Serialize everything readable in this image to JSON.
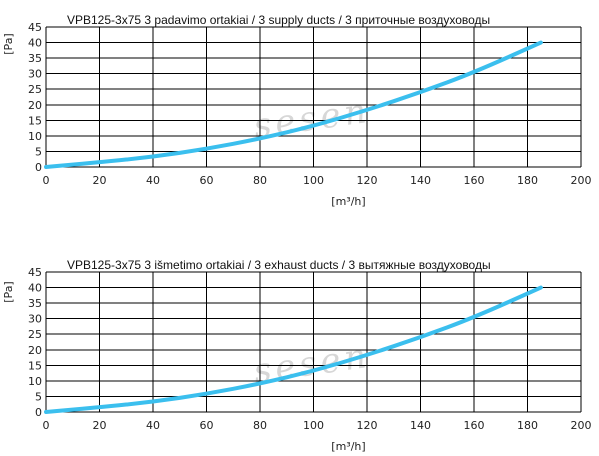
{
  "chart_data": [
    {
      "type": "line",
      "title": "VPB125-3x75 3 padavimo ortakiai / 3 supply ducts / 3 приточные воздуховоды",
      "xlabel": "[m³/h]",
      "ylabel": "[Pa]",
      "xlim": [
        0,
        200
      ],
      "ylim": [
        0,
        45
      ],
      "xticks": [
        "0",
        "20",
        "40",
        "60",
        "80",
        "100",
        "120",
        "140",
        "160",
        "180",
        "200"
      ],
      "yticks": [
        "0",
        "5",
        "10",
        "15",
        "20",
        "25",
        "30",
        "35",
        "40",
        "45"
      ],
      "grid": true,
      "color": "#3bbfee",
      "series": [
        {
          "x": [
            0,
            20,
            40,
            60,
            80,
            100,
            120,
            140,
            160,
            185
          ],
          "y": [
            0,
            1.5,
            3.3,
            5.8,
            9.1,
            13.2,
            18.3,
            24.0,
            30.4,
            40.0
          ]
        }
      ],
      "watermark": "sesen"
    },
    {
      "type": "line",
      "title": "VPB125-3x75 3 išmetimo ortakiai / 3 exhaust ducts / 3 вытяжные воздуховоды",
      "xlabel": "[m³/h]",
      "ylabel": "[Pa]",
      "xlim": [
        0,
        200
      ],
      "ylim": [
        0,
        45
      ],
      "xticks": [
        "0",
        "20",
        "40",
        "60",
        "80",
        "100",
        "120",
        "140",
        "160",
        "180",
        "200"
      ],
      "yticks": [
        "0",
        "5",
        "10",
        "15",
        "20",
        "25",
        "30",
        "35",
        "40",
        "45"
      ],
      "grid": true,
      "color": "#3bbfee",
      "series": [
        {
          "x": [
            0,
            20,
            40,
            60,
            80,
            100,
            120,
            140,
            160,
            185
          ],
          "y": [
            0,
            1.5,
            3.3,
            5.8,
            9.1,
            13.2,
            18.3,
            24.0,
            30.4,
            40.0
          ]
        }
      ],
      "watermark": "sesen"
    }
  ]
}
